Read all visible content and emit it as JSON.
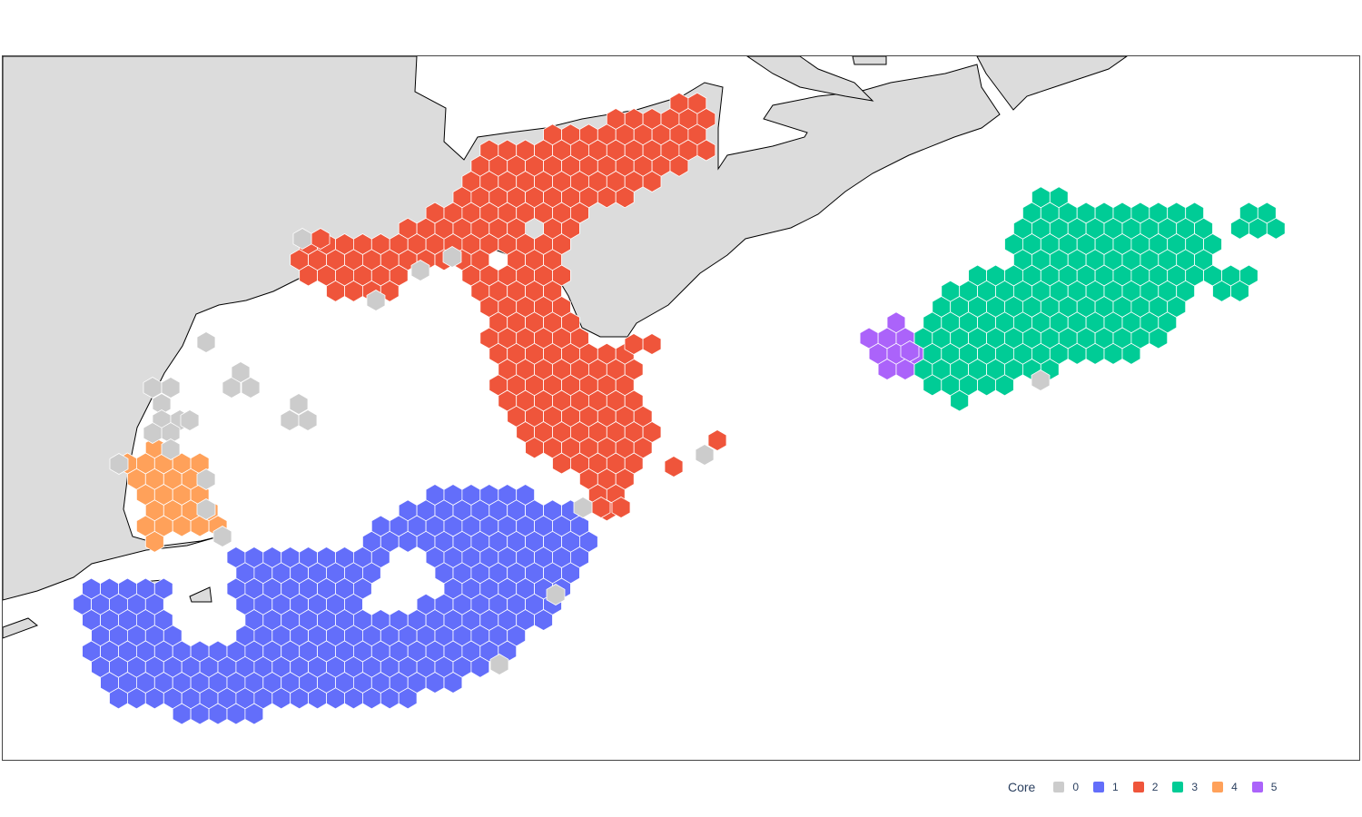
{
  "map": {
    "land_color": "#dcdcdc",
    "coast_color": "#000000",
    "water_color": "#ffffff",
    "hex_border_color": "#ffffff"
  },
  "legend": {
    "title": "Core",
    "items": [
      {
        "label": "0",
        "color": "#cccccc"
      },
      {
        "label": "1",
        "color": "#636efa"
      },
      {
        "label": "2",
        "color": "#ef553b"
      },
      {
        "label": "3",
        "color": "#00cc96"
      },
      {
        "label": "4",
        "color": "#ffa15a"
      },
      {
        "label": "5",
        "color": "#ab63fa"
      }
    ]
  }
}
